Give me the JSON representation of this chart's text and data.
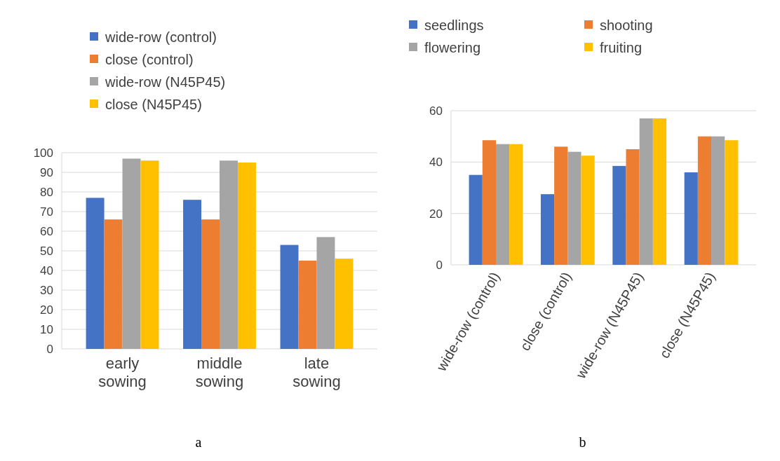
{
  "chart_data": [
    {
      "type": "bar",
      "categories": [
        "early sowing",
        "middle sowing",
        "late sowing"
      ],
      "ylim": [
        0,
        100
      ],
      "yticks": [
        0,
        10,
        20,
        30,
        40,
        50,
        60,
        70,
        80,
        90,
        100
      ],
      "grid": "y",
      "legend": "top",
      "annotations": [
        "a"
      ],
      "series": [
        {
          "name": "wide-row (control)",
          "color": "#4472c4",
          "values": [
            77,
            76,
            53
          ]
        },
        {
          "name": "close (control)",
          "color": "#ed7d31",
          "values": [
            66,
            66,
            45
          ]
        },
        {
          "name": "wide-row (N45P45)",
          "color": "#a5a5a5",
          "values": [
            97,
            96,
            57
          ]
        },
        {
          "name": "close (N45P45)",
          "color": "#ffc000",
          "values": [
            96,
            95,
            46
          ]
        }
      ]
    },
    {
      "type": "bar",
      "categories": [
        "wide-row (control)",
        "close (control)",
        "wide-row (N45P45)",
        "close (N45P45)"
      ],
      "ylim": [
        0,
        60
      ],
      "yticks": [
        0,
        20,
        40,
        60
      ],
      "grid": "y",
      "legend": "top",
      "annotations": [
        "b"
      ],
      "series": [
        {
          "name": "seedlings",
          "color": "#4472c4",
          "values": [
            35,
            27.5,
            38.5,
            36
          ]
        },
        {
          "name": "shooting",
          "color": "#ed7d31",
          "values": [
            48.5,
            46,
            45,
            50
          ]
        },
        {
          "name": "flowering",
          "color": "#a5a5a5",
          "values": [
            47,
            44,
            57,
            50
          ]
        },
        {
          "name": "fruiting",
          "color": "#ffc000",
          "values": [
            47,
            42.5,
            57,
            48.5
          ]
        }
      ]
    }
  ]
}
